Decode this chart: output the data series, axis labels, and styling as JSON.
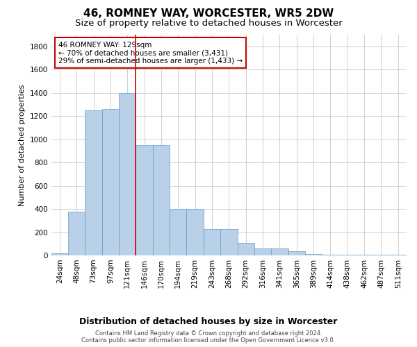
{
  "title1": "46, ROMNEY WAY, WORCESTER, WR5 2DW",
  "title2": "Size of property relative to detached houses in Worcester",
  "xlabel": "Distribution of detached houses by size in Worcester",
  "ylabel": "Number of detached properties",
  "categories": [
    "24sqm",
    "48sqm",
    "73sqm",
    "97sqm",
    "121sqm",
    "146sqm",
    "170sqm",
    "194sqm",
    "219sqm",
    "243sqm",
    "268sqm",
    "292sqm",
    "316sqm",
    "341sqm",
    "365sqm",
    "389sqm",
    "414sqm",
    "438sqm",
    "462sqm",
    "487sqm",
    "511sqm"
  ],
  "values": [
    20,
    375,
    1250,
    1260,
    1400,
    950,
    950,
    400,
    400,
    230,
    230,
    110,
    60,
    60,
    35,
    12,
    8,
    5,
    4,
    4,
    4
  ],
  "bar_color": "#b8d0e8",
  "bar_edgecolor": "#6699cc",
  "vline_color": "#cc0000",
  "annotation_text": "46 ROMNEY WAY: 129sqm\n← 70% of detached houses are smaller (3,431)\n29% of semi-detached houses are larger (1,433) →",
  "annotation_box_color": "#ffffff",
  "annotation_box_edgecolor": "#cc0000",
  "ylim": [
    0,
    1900
  ],
  "yticks": [
    0,
    200,
    400,
    600,
    800,
    1000,
    1200,
    1400,
    1600,
    1800
  ],
  "footer1": "Contains HM Land Registry data © Crown copyright and database right 2024.",
  "footer2": "Contains public sector information licensed under the Open Government Licence v3.0.",
  "bg_color": "#ffffff",
  "grid_color": "#c8c8c8",
  "title1_fontsize": 11,
  "title2_fontsize": 9.5,
  "tick_fontsize": 7.5,
  "ylabel_fontsize": 8,
  "xlabel_fontsize": 9,
  "annotation_fontsize": 7.5
}
